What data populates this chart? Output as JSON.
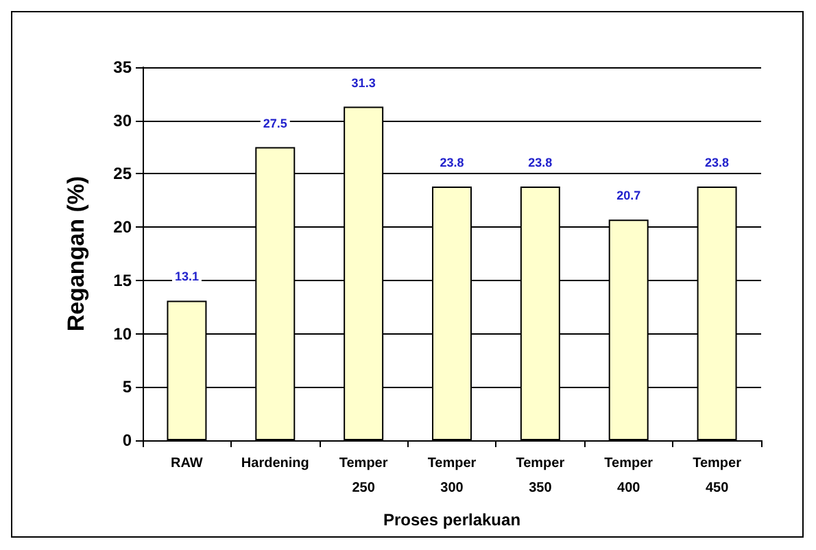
{
  "chart_data": {
    "type": "bar",
    "xlabel": "Proses perlakuan",
    "ylabel": "Regangan (%)",
    "categories": [
      "RAW",
      "Hardening",
      "Temper 250",
      "Temper 300",
      "Temper 350",
      "Temper 400",
      "Temper 450"
    ],
    "values": [
      13.1,
      27.5,
      31.3,
      23.8,
      23.8,
      20.7,
      23.8
    ],
    "color": "#ffffcc",
    "ylim": [
      0,
      35
    ],
    "yticks": [
      0,
      5,
      10,
      15,
      20,
      25,
      30,
      35
    ],
    "grid": "y",
    "data_labels": true
  }
}
